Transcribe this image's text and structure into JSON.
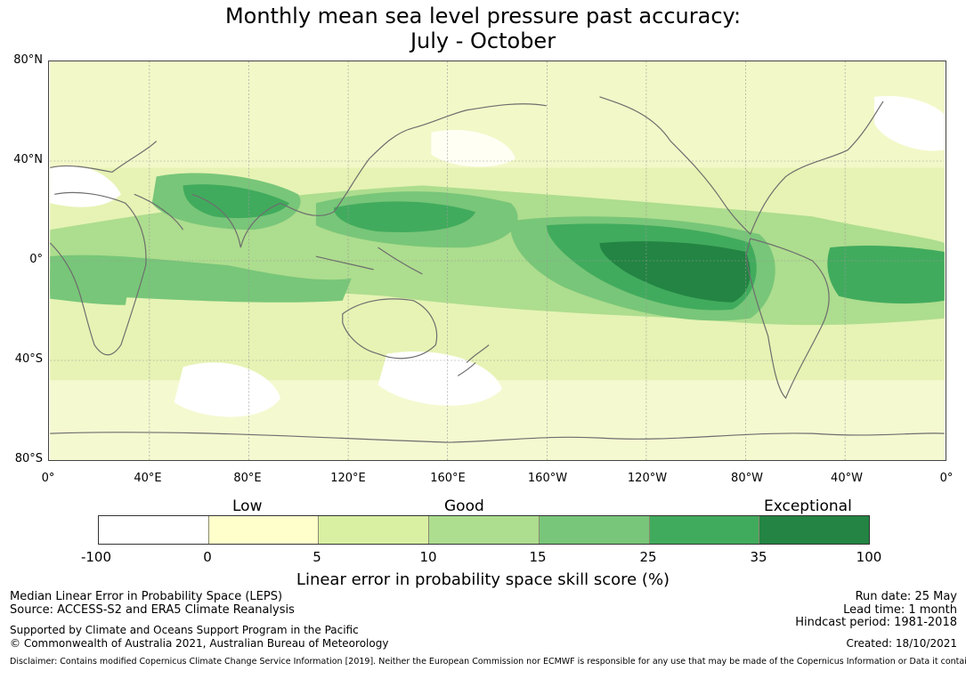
{
  "title_line1": "Monthly mean sea level pressure past accuracy:",
  "title_line2": "July - October",
  "lat_ticks": [
    "80°N",
    "40°N",
    "0°",
    "40°S",
    "80°S"
  ],
  "lon_ticks": [
    "0°",
    "40°E",
    "80°E",
    "120°E",
    "160°E",
    "160°W",
    "120°W",
    "80°W",
    "40°W",
    "0°"
  ],
  "categories": [
    "Low",
    "Good",
    "Exceptional"
  ],
  "colorbar": {
    "ticks": [
      "-100",
      "0",
      "5",
      "10",
      "15",
      "25",
      "35",
      "100"
    ],
    "colors": [
      "#ffffff",
      "#ffffcc",
      "#d9f0a3",
      "#addd8e",
      "#78c679",
      "#41ab5d",
      "#238443"
    ],
    "label": "Linear error in probability space skill score (%)"
  },
  "info_left": {
    "line1": "Median Linear Error in Probability Space (LEPS)",
    "line2": "Source: ACCESS-S2 and ERA5 Climate Reanalysis",
    "line3": "Supported by Climate and Oceans Support Program in the Pacific",
    "line4": "© Commonwealth of Australia 2021, Australian Bureau of Meteorology"
  },
  "info_right": {
    "run_date": "Run date: 25 May",
    "lead_time": "Lead time: 1 month",
    "hindcast": "Hindcast period: 1981-2018",
    "created": "Created: 18/10/2021"
  },
  "disclaimer": "Disclaimer: Contains modified Copernicus Climate Change Service Information [2019]. Neither the European Commission nor ECMWF is responsible for any use that may be made of the Copernicus Information or Data it contains."
}
